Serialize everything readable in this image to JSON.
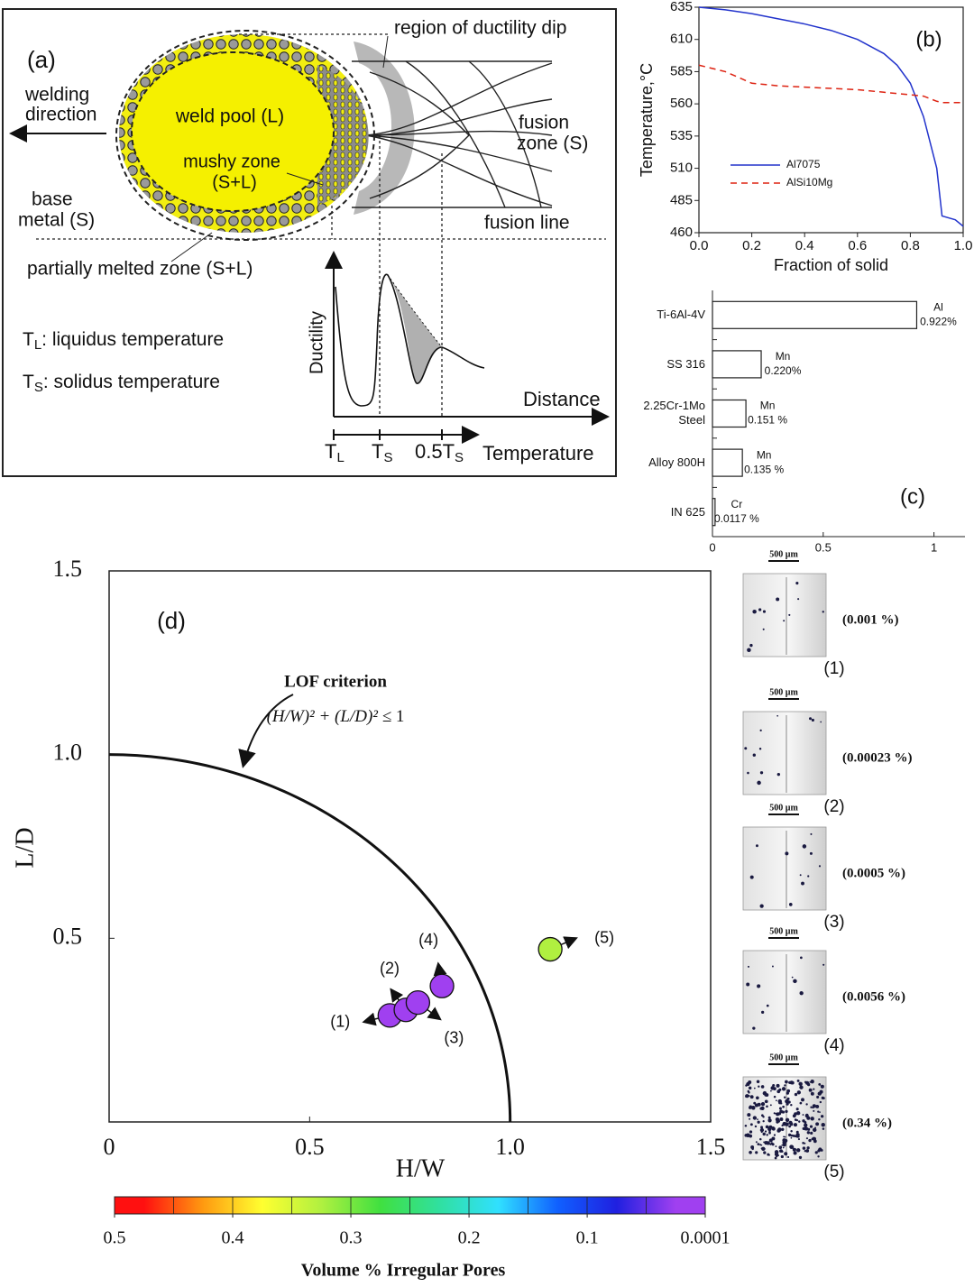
{
  "panel_a": {
    "label": "(a)",
    "ductility_dip": "region of ductility dip",
    "welding_direction": [
      "welding",
      "direction"
    ],
    "weld_pool": "weld pool (L)",
    "mushy_zone": [
      "mushy zone",
      "(S+L)"
    ],
    "fusion_zone": [
      "fusion",
      "zone (S)"
    ],
    "base_metal": [
      "base",
      "metal (S)"
    ],
    "fusion_line": "fusion line",
    "partially_melted": "partially melted zone (S+L)",
    "legend": [
      {
        "symbol": "T",
        "sub": "L",
        "text": ": liquidus temperature"
      },
      {
        "symbol": "T",
        "sub": "S",
        "text": ": solidus temperature"
      }
    ],
    "y_axis": "Ductility",
    "x_axis_top": "Distance",
    "x_axis_bottom": "Temperature",
    "temp_ticks": [
      {
        "main": "T",
        "sub": "L"
      },
      {
        "main": "T",
        "sub": "S"
      },
      {
        "main": "0.5T",
        "sub": "S"
      }
    ]
  },
  "chart_data": [
    {
      "type": "line",
      "annotation": "(b)",
      "xlabel": "Fraction of solid",
      "ylabel": "Temperature,°C",
      "x": [
        0,
        0.1,
        0.2,
        0.3,
        0.4,
        0.5,
        0.6,
        0.7,
        0.75,
        0.8,
        0.85,
        0.9,
        0.92,
        0.97,
        1.0
      ],
      "series": [
        {
          "name": "Al7075",
          "color": "#2233cc",
          "linestyle": "solid",
          "values": [
            635,
            633,
            630,
            626,
            622,
            617,
            610,
            599,
            590,
            576,
            550,
            510,
            473,
            470,
            465
          ]
        },
        {
          "name": "AlSi10Mg",
          "color": "#dd2211",
          "linestyle": "dashed",
          "values": [
            590,
            585,
            576,
            574,
            573,
            572,
            571,
            569,
            568,
            567,
            566,
            562,
            561,
            561,
            561
          ]
        }
      ],
      "xlim": [
        0,
        1
      ],
      "xticks": [
        {
          "value": 0,
          "label": "0.0"
        },
        {
          "value": 0.2,
          "label": "0.2"
        },
        {
          "value": 0.4,
          "label": "0.4"
        },
        {
          "value": 0.6,
          "label": "0.6"
        },
        {
          "value": 0.8,
          "label": "0.8"
        },
        {
          "value": 1,
          "label": "1.0"
        }
      ],
      "ylim": [
        460,
        635
      ],
      "yticks": [
        460,
        485,
        510,
        535,
        560,
        585,
        610,
        635
      ],
      "legend": "middle left"
    },
    {
      "type": "bar",
      "orientation": "horizontal",
      "annotation": "(c)",
      "categories": [
        "Ti-6Al-4V",
        "SS 316",
        "2.25Cr-1Mo Steel",
        "Alloy 800H",
        "IN 625"
      ],
      "values": [
        0.922,
        0.22,
        0.151,
        0.135,
        0.0117
      ],
      "elements": [
        "Al",
        "Mn",
        "Mn",
        "Mn",
        "Cr"
      ],
      "value_labels": [
        "0.922%",
        "0.220%",
        "0.151 %",
        "0.135 %",
        "0.0117 %"
      ],
      "color": "#ffffff",
      "xlim": [
        0,
        1.14
      ],
      "xticks": [
        0,
        0.5,
        1
      ]
    },
    {
      "type": "scatter",
      "annotation": "(d)",
      "xlabel": "H/W",
      "ylabel": "L/D",
      "xlim": [
        0,
        1.5
      ],
      "ylim": [
        0,
        1.5
      ],
      "xticks": [
        0,
        0.5,
        {
          "value": 1,
          "label": "1.0"
        },
        1.5
      ],
      "yticks": [
        0.5,
        {
          "value": 1,
          "label": "1.0"
        },
        1.5
      ],
      "criterion": {
        "title": "LOF criterion",
        "formula": "(H/W)² + (L/D)² ≤",
        "rhs": 1
      },
      "points": {
        "labels": [
          "(1)",
          "(2)",
          "(3)",
          "(4)",
          "(5)"
        ],
        "x": [
          0.7,
          0.74,
          0.77,
          0.83,
          1.1
        ],
        "y": [
          0.29,
          0.305,
          0.325,
          0.37,
          0.47
        ],
        "pore_percent": [
          0.001,
          0.00023,
          0.0005,
          0.0056,
          0.34
        ],
        "pore_labels": [
          "(0.001 %)",
          "(0.00023 %)",
          "(0.0005 %)",
          "(0.0056 %)",
          "(0.34 %)"
        ],
        "scale_bar": "500 µm"
      },
      "colorbar": {
        "title": "Volume % Irregular Pores",
        "lim": [
          0.5,
          0.0001
        ],
        "ticks": [
          0.5,
          0.4,
          0.3,
          0.2,
          0.1,
          0.0001
        ],
        "colors": [
          "#ff1010",
          "#ff9a10",
          "#ffff30",
          "#b0f040",
          "#40e040",
          "#30e0a0",
          "#30e0ff",
          "#1060ff",
          "#2020e0",
          "#a040f0"
        ]
      }
    }
  ]
}
